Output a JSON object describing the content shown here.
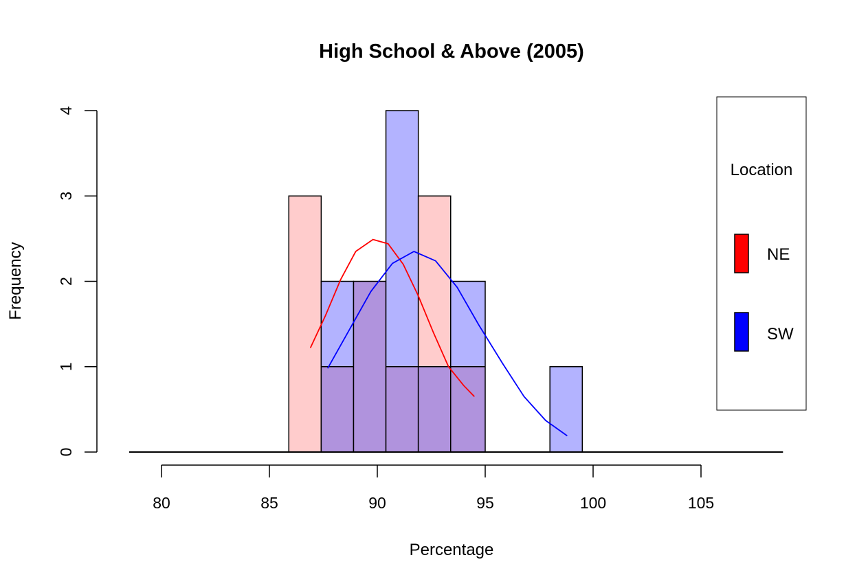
{
  "chart_data": {
    "type": "bar",
    "title": "High School & Above (2005)",
    "xlabel": "Percentage",
    "ylabel": "Frequency",
    "xlim": [
      78.5,
      108.8
    ],
    "ylim": [
      0,
      4
    ],
    "x_ticks": [
      "80",
      "85",
      "90",
      "95",
      "100",
      "105"
    ],
    "y_ticks": [
      "0",
      "1",
      "2",
      "3",
      "4"
    ],
    "bin_edges": [
      85.9,
      87.4,
      88.9,
      90.4,
      91.9,
      93.4,
      95.0,
      96.5,
      98.0,
      99.5
    ],
    "series": [
      {
        "name": "NE",
        "color": "#ff0000",
        "fill": "#ffcccc",
        "values": [
          3,
          1,
          2,
          1,
          3,
          1,
          0,
          0,
          0
        ],
        "density_curve": {
          "x": [
            86.9,
            87.6,
            88.3,
            89.0,
            89.8,
            90.5,
            91.2,
            91.9,
            92.6,
            93.3,
            94.0,
            94.5
          ],
          "y": [
            1.22,
            1.6,
            2.02,
            2.35,
            2.49,
            2.44,
            2.2,
            1.83,
            1.4,
            1.0,
            0.78,
            0.65
          ]
        }
      },
      {
        "name": "SW",
        "color": "#0000ff",
        "fill": "#b3b3ff",
        "values": [
          0,
          2,
          2,
          4,
          1,
          2,
          0,
          0,
          1
        ],
        "density_curve": {
          "x": [
            87.7,
            88.7,
            89.7,
            90.7,
            91.7,
            92.7,
            93.7,
            94.7,
            95.8,
            96.8,
            97.8,
            98.8
          ],
          "y": [
            0.98,
            1.43,
            1.88,
            2.21,
            2.35,
            2.24,
            1.93,
            1.49,
            1.04,
            0.65,
            0.37,
            0.19
          ]
        }
      }
    ],
    "overlap_fill": "#b093dd",
    "legend": {
      "title": "Location",
      "entries": [
        "NE",
        "SW"
      ],
      "placement": "right"
    }
  }
}
